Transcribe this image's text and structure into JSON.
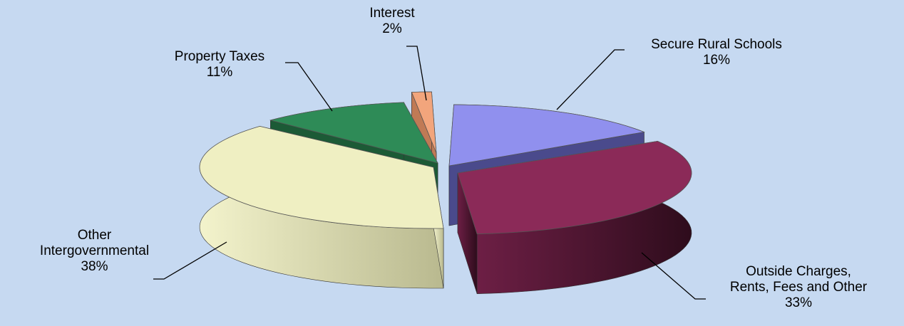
{
  "chart_data": {
    "type": "pie",
    "style": "3d-exploded",
    "slices": [
      {
        "label": "Secure Rural Schools",
        "value": 16,
        "value_label": "16%",
        "color": "#9090ee"
      },
      {
        "label": "Outside Charges, Rents, Fees and Other",
        "value": 33,
        "value_label": "33%",
        "color": "#8b2a58"
      },
      {
        "label": "Other Intergovernmental",
        "value": 38,
        "value_label": "38%",
        "color": "#efefc2"
      },
      {
        "label": "Property Taxes",
        "value": 11,
        "value_label": "11%",
        "color": "#2e8b57"
      },
      {
        "label": "Interest",
        "value": 2,
        "value_label": "2%",
        "color": "#f2a57c"
      }
    ]
  },
  "labels": {
    "secure": {
      "line1": "Secure Rural Schools",
      "pct": "16%"
    },
    "outside": {
      "line1": "Outside Charges,",
      "line2": "Rents, Fees and Other",
      "pct": "33%"
    },
    "other": {
      "line1": "Other",
      "line2": "Intergovernmental",
      "pct": "38%"
    },
    "property": {
      "line1": "Property Taxes",
      "pct": "11%"
    },
    "interest": {
      "line1": "Interest",
      "pct": "2%"
    }
  }
}
